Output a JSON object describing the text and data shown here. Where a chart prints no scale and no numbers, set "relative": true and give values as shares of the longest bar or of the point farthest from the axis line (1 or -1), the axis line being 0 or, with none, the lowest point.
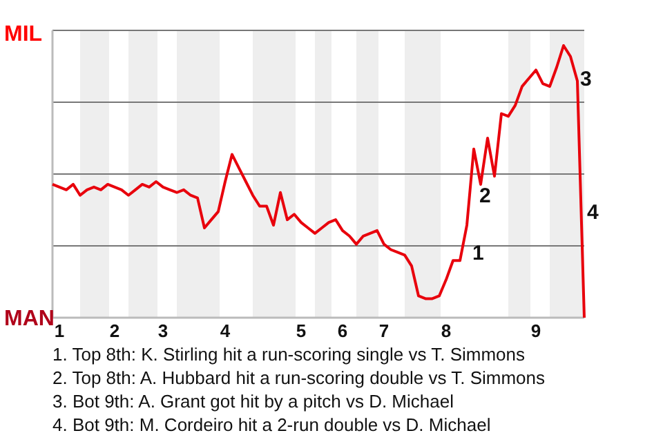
{
  "chart_data": {
    "type": "line",
    "relative": true,
    "categories": [
      null,
      "1",
      null,
      null,
      null,
      null,
      null,
      null,
      null,
      "2",
      null,
      null,
      null,
      null,
      null,
      null,
      "3",
      null,
      null,
      null,
      null,
      null,
      null,
      null,
      null,
      "4",
      null,
      null,
      null,
      null,
      null,
      null,
      null,
      null,
      null,
      null,
      "5",
      null,
      null,
      null,
      null,
      null,
      "6",
      null,
      null,
      null,
      null,
      null,
      "7",
      null,
      null,
      null,
      null,
      null,
      null,
      null,
      null,
      "8",
      null,
      null,
      null,
      null,
      null,
      null,
      null,
      null,
      null,
      null,
      null,
      null,
      "9",
      null,
      null,
      null,
      null,
      null,
      null,
      null
    ],
    "series": [
      {
        "color": "#e8000c",
        "values": [
          0.49,
          0.48,
          0.47,
          0.49,
          0.45,
          0.47,
          0.48,
          0.47,
          0.49,
          0.48,
          0.47,
          0.45,
          0.47,
          0.49,
          0.48,
          0.5,
          0.48,
          0.47,
          0.46,
          0.47,
          0.45,
          0.44,
          0.33,
          0.36,
          0.39,
          0.5,
          0.6,
          0.55,
          0.5,
          0.45,
          0.41,
          0.41,
          0.34,
          0.46,
          0.36,
          0.38,
          0.35,
          0.33,
          0.31,
          0.33,
          0.35,
          0.36,
          0.32,
          0.3,
          0.27,
          0.3,
          0.31,
          0.32,
          0.27,
          0.25,
          0.24,
          0.23,
          0.19,
          0.08,
          0.07,
          0.07,
          0.08,
          0.14,
          0.21,
          0.21,
          0.34,
          0.62,
          0.49,
          0.66,
          0.52,
          0.75,
          0.74,
          0.78,
          0.85,
          0.88,
          0.91,
          0.86,
          0.85,
          0.92,
          1,
          0.96,
          0.87,
          0
        ]
      }
    ],
    "grid": "y",
    "annotations": [
      "MIL",
      "MAN",
      "1",
      "2",
      "3",
      "4",
      "1. Top 8th: K. Stirling hit a run-scoring single vs T. Simmons",
      "2. Top 8th: A. Hubbard hit a run-scoring double vs T. Simmons",
      "3. Bot 9th: A. Grant got hit by a pitch vs D. Michael",
      "4. Bot 9th: M. Cordeiro hit a 2-run double vs D. Michael"
    ],
    "marker": "none",
    "line_style": "solid"
  }
}
